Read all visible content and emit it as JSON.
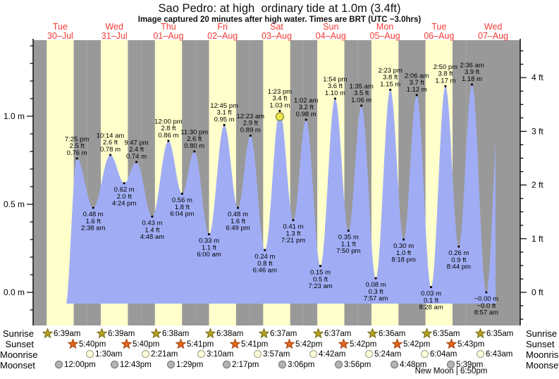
{
  "title": "Sao Pedro: at high  ordinary tide at 1.0m (3.4ft)",
  "subtitle": "Image captured 20 minutes after high water. Times are BRT (UTC −3.0hrs)",
  "colors": {
    "day_band": "#ffffcc",
    "night_band": "#999999",
    "tide_fill": "#a0adf5",
    "date_label": "#f43b35",
    "current_marker_fill": "#efe54d",
    "current_marker_stroke": "#8f8f2e",
    "sunrise_star_fill": "#b3a025",
    "sunrise_star_stroke": "#756a14",
    "sunset_star_fill": "#e2661c",
    "sunset_star_stroke": "#9c3f0c",
    "moonrise_disc_fill": "#ffffd9",
    "moonrise_disc_stroke": "#a8a89a",
    "moonset_disc_fill": "#b4b4b4",
    "moonset_disc_stroke": "#7d7d7d"
  },
  "chart_data": {
    "type": "area",
    "title": "Sao Pedro: at high  ordinary tide at 1.0m (3.4ft)",
    "unit_left": "m",
    "unit_right": "ft",
    "yaxis_left_tick_labels": [
      "1.0 m",
      "0.5 m",
      "0.0 m"
    ],
    "yaxis_left_tick_values": [
      1.0,
      0.5,
      0.0
    ],
    "yaxis_right_tick_labels": [
      "4 ft",
      "3 ft",
      "2 ft",
      "1 ft",
      "0 ft"
    ],
    "yaxis_right_tick_values": [
      4,
      3,
      2,
      1,
      0
    ],
    "ylim_m": [
      -0.19,
      1.43
    ],
    "days": [
      {
        "name": "Tue",
        "date": "30–Jul"
      },
      {
        "name": "Wed",
        "date": "31–Jul"
      },
      {
        "name": "Thu",
        "date": "01–Aug"
      },
      {
        "name": "Fri",
        "date": "02–Aug"
      },
      {
        "name": "Sat",
        "date": "03–Aug"
      },
      {
        "name": "Sun",
        "date": "04–Aug"
      },
      {
        "name": "Mon",
        "date": "05–Aug"
      },
      {
        "name": "Tue",
        "date": "06–Aug"
      },
      {
        "name": "Wed",
        "date": "07–Aug"
      }
    ],
    "extremes": [
      {
        "day": 0,
        "type": "high",
        "time": "7:25 pm",
        "ft": "2.5 ft",
        "m": "0.76 m",
        "value_m": 0.76
      },
      {
        "day": 1,
        "type": "low",
        "time": "2:38 am",
        "ft": "1.6 ft",
        "m": "0.48 m",
        "value_m": 0.48
      },
      {
        "day": 1,
        "type": "high",
        "time": "10:14 am",
        "ft": "2.6 ft",
        "m": "0.78 m",
        "value_m": 0.78
      },
      {
        "day": 1,
        "type": "low",
        "time": "4:24 pm",
        "ft": "2.0 ft",
        "m": "0.62 m",
        "value_m": 0.62
      },
      {
        "day": 1,
        "type": "high",
        "time": "9:47 pm",
        "ft": "2.4 ft",
        "m": "0.74 m",
        "value_m": 0.74
      },
      {
        "day": 2,
        "type": "low",
        "time": "4:48 am",
        "ft": "1.4 ft",
        "m": "0.43 m",
        "value_m": 0.43
      },
      {
        "day": 2,
        "type": "high",
        "time": "12:00 pm",
        "ft": "2.8 ft",
        "m": "0.86 m",
        "value_m": 0.86
      },
      {
        "day": 2,
        "type": "low",
        "time": "6:04 pm",
        "ft": "1.8 ft",
        "m": "0.56 m",
        "value_m": 0.56
      },
      {
        "day": 2,
        "type": "high",
        "time": "11:30 pm",
        "ft": "2.6 ft",
        "m": "0.80 m",
        "value_m": 0.8
      },
      {
        "day": 3,
        "type": "low",
        "time": "6:00 am",
        "ft": "1.1 ft",
        "m": "0.33 m",
        "value_m": 0.33
      },
      {
        "day": 3,
        "type": "high",
        "time": "12:45 pm",
        "ft": "3.1 ft",
        "m": "0.95 m",
        "value_m": 0.95
      },
      {
        "day": 3,
        "type": "low",
        "time": "6:49 pm",
        "ft": "1.6 ft",
        "m": "0.48 m",
        "value_m": 0.48
      },
      {
        "day": 4,
        "type": "high",
        "time": "12:23 am",
        "ft": "2.9 ft",
        "m": "0.89 m",
        "value_m": 0.89
      },
      {
        "day": 4,
        "type": "low",
        "time": "6:46 am",
        "ft": "0.8 ft",
        "m": "0.24 m",
        "value_m": 0.24
      },
      {
        "day": 4,
        "type": "high",
        "time": "1:23 pm",
        "ft": "3.4 ft",
        "m": "1.03 m",
        "value_m": 1.03,
        "current": true
      },
      {
        "day": 4,
        "type": "low",
        "time": "7:21 pm",
        "ft": "1.3 ft",
        "m": "0.41 m",
        "value_m": 0.41
      },
      {
        "day": 5,
        "type": "high",
        "time": "1:02 am",
        "ft": "3.2 ft",
        "m": "0.98 m",
        "value_m": 0.98
      },
      {
        "day": 5,
        "type": "low",
        "time": "7:23 am",
        "ft": "0.5 ft",
        "m": "0.15 m",
        "value_m": 0.15
      },
      {
        "day": 5,
        "type": "high",
        "time": "1:54 pm",
        "ft": "3.6 ft",
        "m": "1.10 m",
        "value_m": 1.1
      },
      {
        "day": 5,
        "type": "low",
        "time": "7:50 pm",
        "ft": "1.1 ft",
        "m": "0.35 m",
        "value_m": 0.35
      },
      {
        "day": 6,
        "type": "high",
        "time": "1:35 am",
        "ft": "3.5 ft",
        "m": "1.06 m",
        "value_m": 1.06
      },
      {
        "day": 6,
        "type": "low",
        "time": "7:57 am",
        "ft": "0.3 ft",
        "m": "0.08 m",
        "value_m": 0.08
      },
      {
        "day": 6,
        "type": "high",
        "time": "2:23 pm",
        "ft": "3.8 ft",
        "m": "1.15 m",
        "value_m": 1.15
      },
      {
        "day": 6,
        "type": "low",
        "time": "8:18 pm",
        "ft": "1.0 ft",
        "m": "0.30 m",
        "value_m": 0.3
      },
      {
        "day": 7,
        "type": "high",
        "time": "2:06 am",
        "ft": "3.7 ft",
        "m": "1.12 m",
        "value_m": 1.12
      },
      {
        "day": 7,
        "type": "low",
        "time": "8:28 am",
        "ft": "0.1 ft",
        "m": "0.03 m",
        "value_m": 0.03
      },
      {
        "day": 7,
        "type": "high",
        "time": "2:50 pm",
        "ft": "3.8 ft",
        "m": "1.17 m",
        "value_m": 1.17
      },
      {
        "day": 7,
        "type": "low",
        "time": "8:44 pm",
        "ft": "0.9 ft",
        "m": "0.26 m",
        "value_m": 0.26
      },
      {
        "day": 8,
        "type": "high",
        "time": "2:36 am",
        "ft": "3.9 ft",
        "m": "1.18 m",
        "value_m": 1.18
      },
      {
        "day": 8,
        "type": "low",
        "time": "8:57 am",
        "ft": "−0.0 ft",
        "m": "−0.00 m",
        "value_m": 0.0
      }
    ]
  },
  "astro": {
    "rows": [
      {
        "label": "Sunrise",
        "icon": "sunrise-star",
        "events": [
          {
            "day": 0,
            "time": "6:39am"
          },
          {
            "day": 1,
            "time": "6:39am"
          },
          {
            "day": 2,
            "time": "6:38am"
          },
          {
            "day": 3,
            "time": "6:38am"
          },
          {
            "day": 4,
            "time": "6:37am"
          },
          {
            "day": 5,
            "time": "6:37am"
          },
          {
            "day": 6,
            "time": "6:36am"
          },
          {
            "day": 7,
            "time": "6:35am"
          },
          {
            "day": 8,
            "time": "6:35am"
          }
        ]
      },
      {
        "label": "Sunset",
        "icon": "sunset-star",
        "events": [
          {
            "day": 0,
            "time": "5:40pm"
          },
          {
            "day": 1,
            "time": "5:40pm"
          },
          {
            "day": 2,
            "time": "5:41pm"
          },
          {
            "day": 3,
            "time": "5:41pm"
          },
          {
            "day": 4,
            "time": "5:42pm"
          },
          {
            "day": 5,
            "time": "5:42pm"
          },
          {
            "day": 6,
            "time": "5:42pm"
          },
          {
            "day": 7,
            "time": "5:43pm"
          }
        ]
      },
      {
        "label": "Moonrise",
        "icon": "moonrise-disc",
        "events": [
          {
            "day": 1,
            "time": "1:30am"
          },
          {
            "day": 2,
            "time": "2:21am"
          },
          {
            "day": 3,
            "time": "3:10am"
          },
          {
            "day": 4,
            "time": "3:57am"
          },
          {
            "day": 5,
            "time": "4:42am"
          },
          {
            "day": 6,
            "time": "5:24am"
          },
          {
            "day": 7,
            "time": "6:04am"
          },
          {
            "day": 8,
            "time": "6:43am"
          }
        ]
      },
      {
        "label": "Moonset",
        "icon": "moonset-disc",
        "events": [
          {
            "day": 0,
            "time": "12:00pm"
          },
          {
            "day": 1,
            "time": "12:43pm"
          },
          {
            "day": 2,
            "time": "1:29pm"
          },
          {
            "day": 3,
            "time": "2:17pm"
          },
          {
            "day": 4,
            "time": "3:06pm"
          },
          {
            "day": 5,
            "time": "3:56pm"
          },
          {
            "day": 6,
            "time": "4:48pm"
          },
          {
            "day": 7,
            "time": "5:39pm"
          }
        ]
      }
    ],
    "new_moon": "New Moon | 6:50pm"
  }
}
